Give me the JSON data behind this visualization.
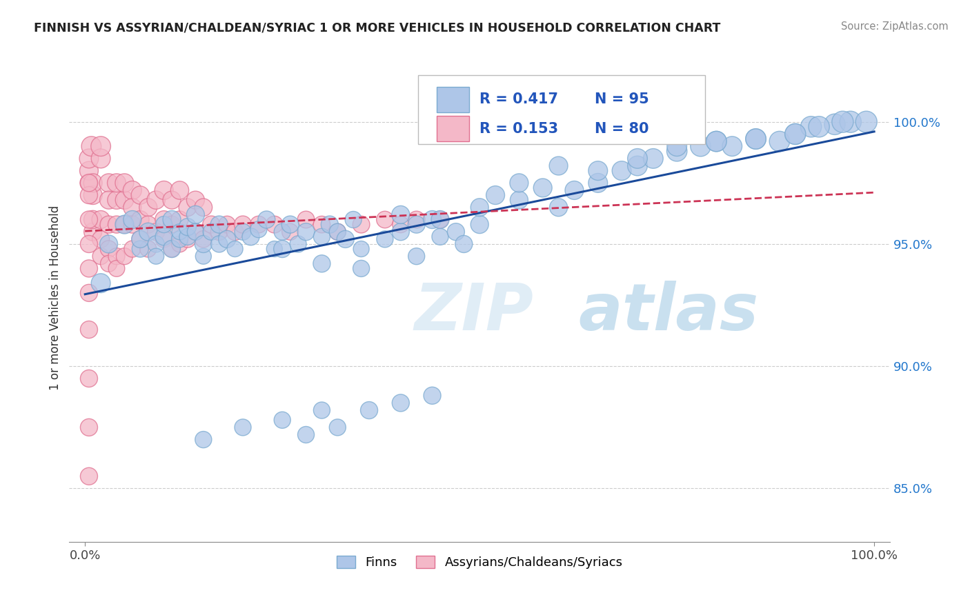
{
  "title": "FINNISH VS ASSYRIAN/CHALDEAN/SYRIAC 1 OR MORE VEHICLES IN HOUSEHOLD CORRELATION CHART",
  "source": "Source: ZipAtlas.com",
  "ylabel": "1 or more Vehicles in Household",
  "legend1_label": "Finns",
  "legend2_label": "Assyrians/Chaldeans/Syriacs",
  "R_blue": 0.417,
  "N_blue": 95,
  "R_pink": 0.153,
  "N_pink": 80,
  "blue_color": "#aec6e8",
  "blue_edge": "#7aaad0",
  "pink_color": "#f4b8c8",
  "pink_edge": "#e07090",
  "blue_line_color": "#1a4a9a",
  "pink_line_color": "#cc3355",
  "watermark_zip": "ZIP",
  "watermark_atlas": "atlas",
  "xmin": -0.02,
  "xmax": 1.02,
  "ymin": 0.828,
  "ymax": 1.028,
  "blue_x": [
    0.02,
    0.03,
    0.05,
    0.06,
    0.07,
    0.07,
    0.08,
    0.09,
    0.09,
    0.1,
    0.1,
    0.11,
    0.11,
    0.12,
    0.12,
    0.13,
    0.13,
    0.14,
    0.14,
    0.15,
    0.15,
    0.16,
    0.17,
    0.17,
    0.18,
    0.19,
    0.2,
    0.21,
    0.22,
    0.23,
    0.24,
    0.25,
    0.26,
    0.27,
    0.28,
    0.3,
    0.31,
    0.32,
    0.33,
    0.34,
    0.35,
    0.38,
    0.4,
    0.42,
    0.44,
    0.45,
    0.47,
    0.5,
    0.52,
    0.55,
    0.58,
    0.6,
    0.62,
    0.65,
    0.68,
    0.7,
    0.72,
    0.75,
    0.78,
    0.8,
    0.82,
    0.85,
    0.88,
    0.9,
    0.92,
    0.95,
    0.97,
    0.99,
    0.55,
    0.6,
    0.65,
    0.7,
    0.75,
    0.8,
    0.85,
    0.9,
    0.93,
    0.96,
    0.4,
    0.45,
    0.5,
    0.28,
    0.32,
    0.36,
    0.4,
    0.44,
    0.25,
    0.3,
    0.35,
    0.42,
    0.48,
    0.15,
    0.2,
    0.25,
    0.3
  ],
  "blue_y": [
    0.934,
    0.95,
    0.958,
    0.96,
    0.948,
    0.952,
    0.955,
    0.95,
    0.945,
    0.953,
    0.958,
    0.96,
    0.948,
    0.952,
    0.955,
    0.953,
    0.957,
    0.962,
    0.955,
    0.945,
    0.95,
    0.955,
    0.958,
    0.95,
    0.952,
    0.948,
    0.955,
    0.953,
    0.956,
    0.96,
    0.948,
    0.955,
    0.958,
    0.95,
    0.955,
    0.953,
    0.958,
    0.955,
    0.952,
    0.96,
    0.948,
    0.952,
    0.955,
    0.958,
    0.96,
    0.953,
    0.955,
    0.958,
    0.97,
    0.968,
    0.973,
    0.965,
    0.972,
    0.975,
    0.98,
    0.982,
    0.985,
    0.988,
    0.99,
    0.992,
    0.99,
    0.993,
    0.992,
    0.995,
    0.998,
    0.999,
    1.0,
    1.0,
    0.975,
    0.982,
    0.98,
    0.985,
    0.99,
    0.992,
    0.993,
    0.995,
    0.998,
    1.0,
    0.962,
    0.96,
    0.965,
    0.872,
    0.875,
    0.882,
    0.885,
    0.888,
    0.948,
    0.942,
    0.94,
    0.945,
    0.95,
    0.87,
    0.875,
    0.878,
    0.882
  ],
  "blue_s": [
    80,
    70,
    75,
    70,
    60,
    65,
    70,
    60,
    55,
    65,
    60,
    70,
    65,
    60,
    55,
    60,
    65,
    70,
    60,
    55,
    65,
    60,
    65,
    60,
    65,
    55,
    60,
    65,
    60,
    65,
    55,
    60,
    65,
    60,
    65,
    60,
    65,
    60,
    65,
    60,
    55,
    60,
    65,
    65,
    70,
    60,
    65,
    70,
    75,
    70,
    75,
    70,
    75,
    80,
    80,
    85,
    85,
    90,
    90,
    90,
    85,
    90,
    90,
    90,
    95,
    95,
    100,
    100,
    75,
    75,
    80,
    85,
    85,
    90,
    90,
    95,
    95,
    100,
    70,
    70,
    70,
    60,
    60,
    65,
    65,
    65,
    65,
    65,
    60,
    60,
    65,
    60,
    60,
    60,
    60
  ],
  "pink_x": [
    0.005,
    0.005,
    0.005,
    0.008,
    0.01,
    0.01,
    0.01,
    0.01,
    0.02,
    0.02,
    0.02,
    0.02,
    0.02,
    0.03,
    0.03,
    0.03,
    0.03,
    0.03,
    0.04,
    0.04,
    0.04,
    0.04,
    0.04,
    0.05,
    0.05,
    0.05,
    0.05,
    0.06,
    0.06,
    0.06,
    0.06,
    0.07,
    0.07,
    0.07,
    0.08,
    0.08,
    0.08,
    0.09,
    0.09,
    0.1,
    0.1,
    0.1,
    0.11,
    0.11,
    0.11,
    0.12,
    0.12,
    0.12,
    0.13,
    0.13,
    0.14,
    0.14,
    0.15,
    0.15,
    0.16,
    0.17,
    0.18,
    0.19,
    0.2,
    0.22,
    0.24,
    0.26,
    0.28,
    0.3,
    0.32,
    0.35,
    0.38,
    0.4,
    0.42,
    0.45,
    0.005,
    0.005,
    0.005,
    0.005,
    0.005,
    0.005,
    0.005,
    0.005,
    0.005,
    0.005
  ],
  "pink_y": [
    0.975,
    0.98,
    0.985,
    0.99,
    0.955,
    0.96,
    0.97,
    0.975,
    0.985,
    0.99,
    0.96,
    0.952,
    0.945,
    0.975,
    0.968,
    0.958,
    0.948,
    0.942,
    0.968,
    0.975,
    0.958,
    0.945,
    0.94,
    0.968,
    0.975,
    0.958,
    0.945,
    0.972,
    0.965,
    0.958,
    0.948,
    0.97,
    0.96,
    0.952,
    0.965,
    0.958,
    0.948,
    0.968,
    0.955,
    0.972,
    0.96,
    0.952,
    0.968,
    0.958,
    0.948,
    0.972,
    0.96,
    0.95,
    0.965,
    0.952,
    0.968,
    0.955,
    0.965,
    0.952,
    0.958,
    0.955,
    0.958,
    0.955,
    0.958,
    0.958,
    0.958,
    0.955,
    0.96,
    0.958,
    0.955,
    0.958,
    0.96,
    0.958,
    0.96,
    0.96,
    0.855,
    0.875,
    0.895,
    0.915,
    0.93,
    0.94,
    0.95,
    0.96,
    0.97,
    0.975
  ],
  "pink_s": [
    70,
    75,
    80,
    85,
    70,
    72,
    75,
    75,
    80,
    85,
    70,
    65,
    60,
    75,
    70,
    65,
    62,
    60,
    72,
    75,
    65,
    60,
    58,
    72,
    75,
    65,
    60,
    75,
    70,
    65,
    60,
    72,
    68,
    63,
    70,
    65,
    60,
    72,
    65,
    75,
    68,
    62,
    70,
    63,
    58,
    72,
    65,
    58,
    68,
    62,
    70,
    63,
    68,
    62,
    65,
    63,
    63,
    63,
    65,
    63,
    63,
    60,
    63,
    62,
    60,
    63,
    62,
    60,
    63,
    62,
    65,
    65,
    65,
    65,
    65,
    65,
    65,
    65,
    65,
    65
  ],
  "yticks": [
    0.85,
    0.9,
    0.95,
    1.0
  ],
  "ytick_labels": [
    "85.0%",
    "90.0%",
    "95.0%",
    "100.0%"
  ]
}
